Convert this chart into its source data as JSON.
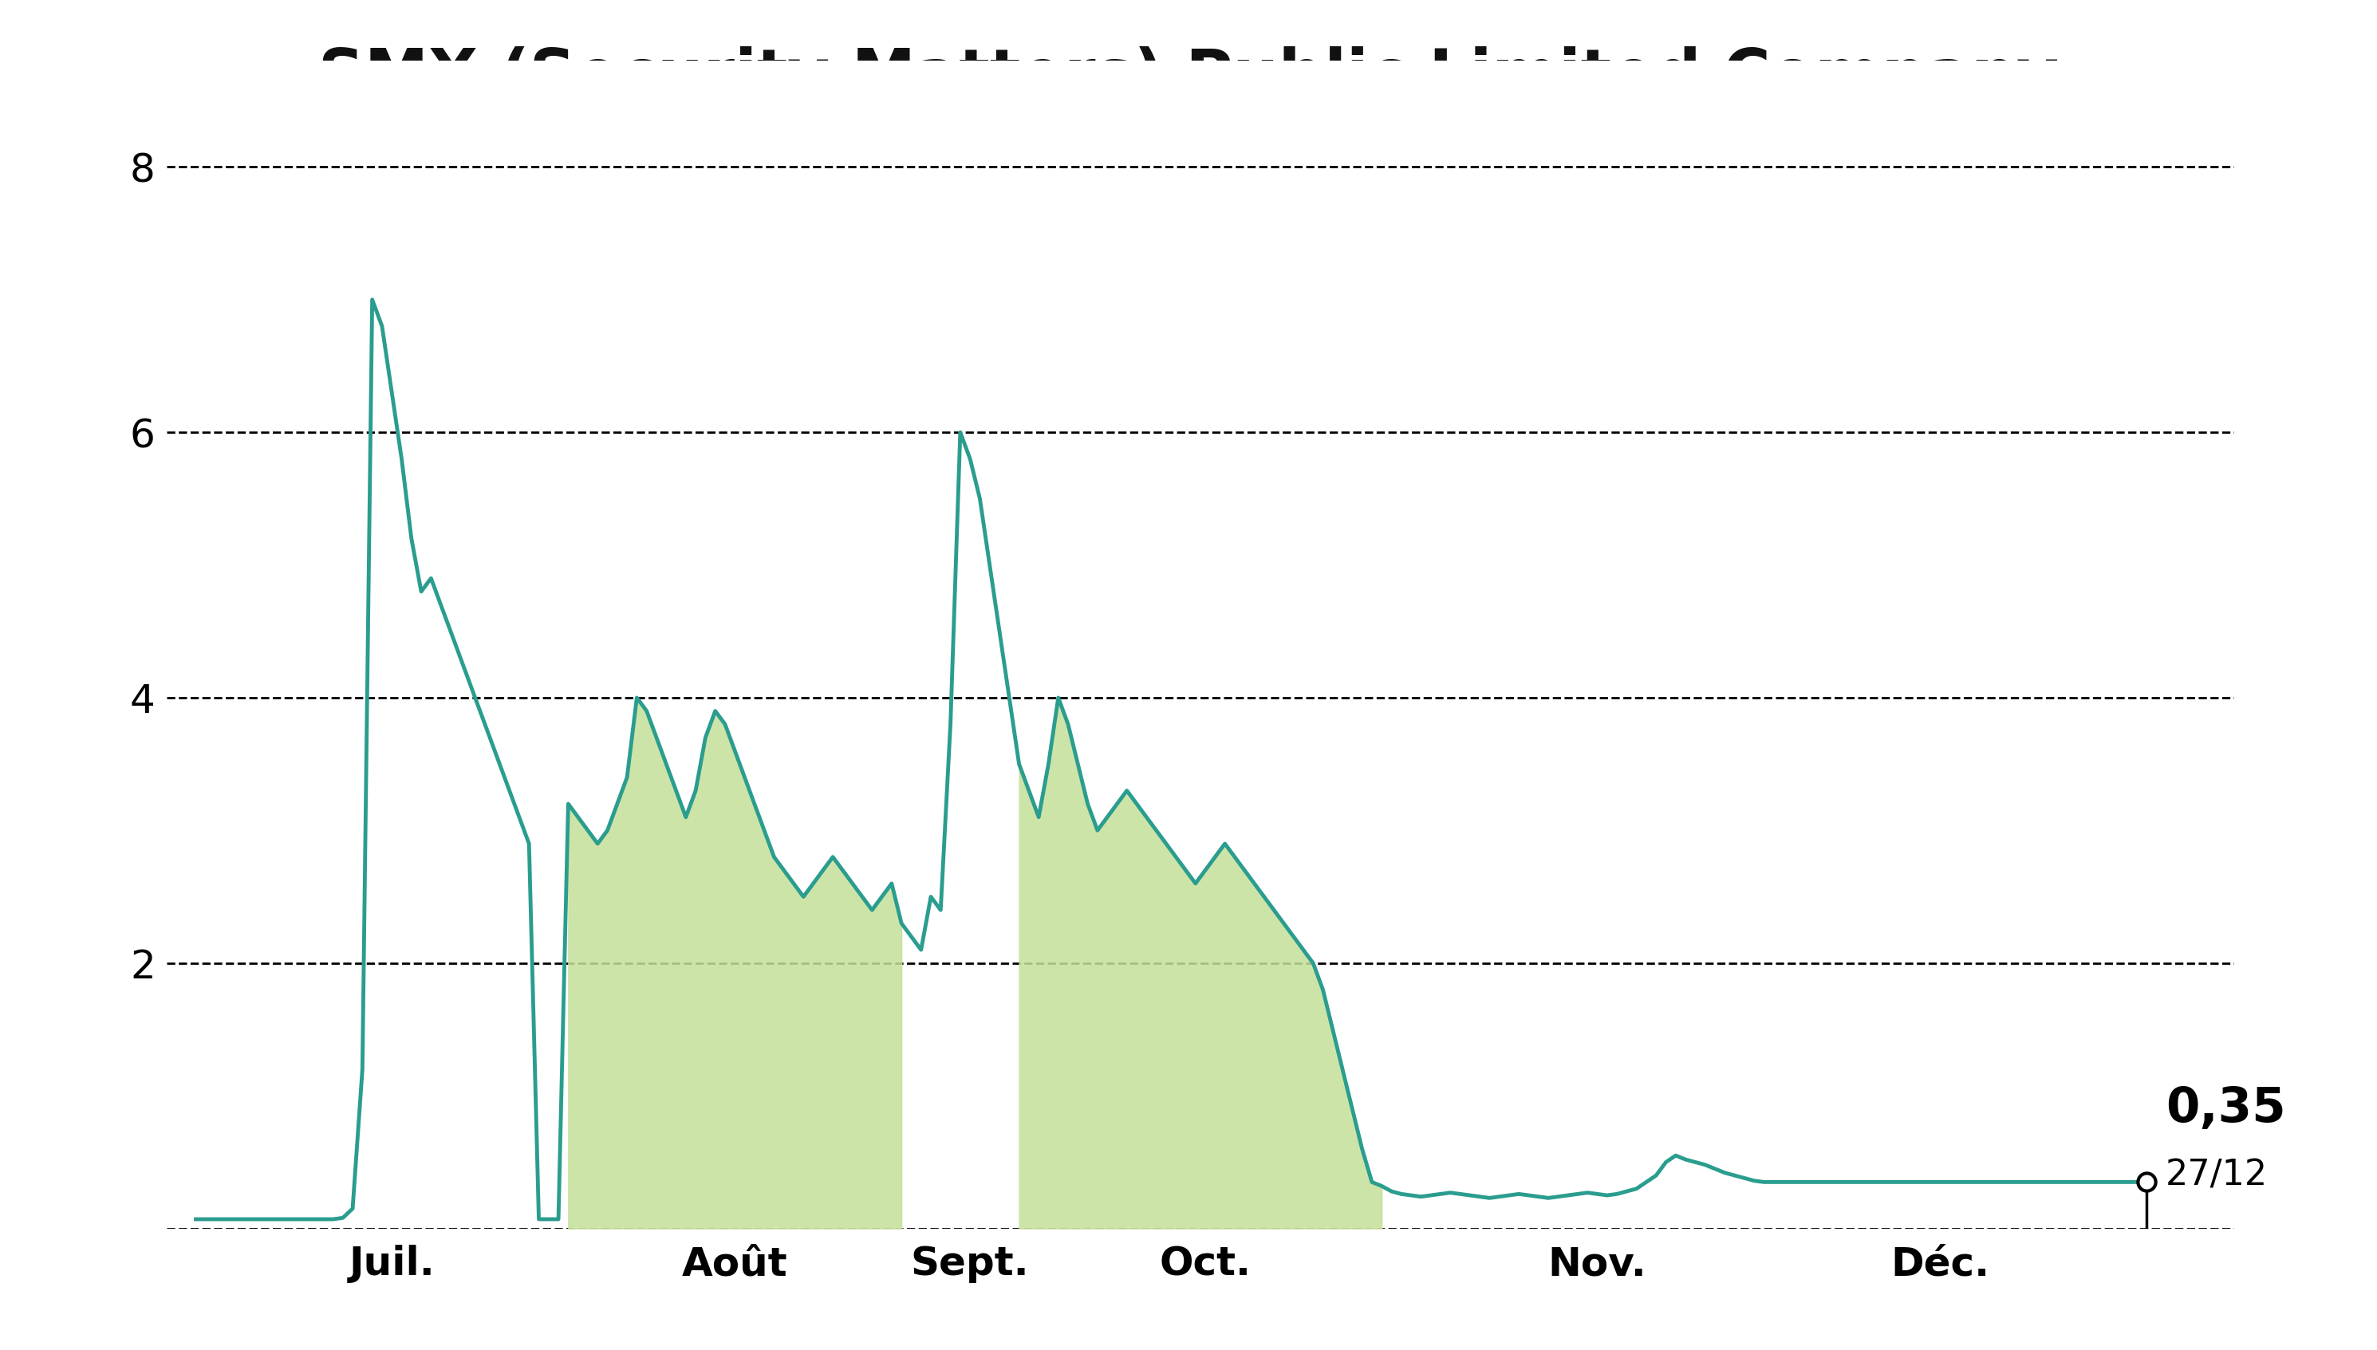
{
  "title": "SMX (Security Matters) Public Limited Company",
  "title_bg_color": "#c5e09a",
  "title_fontsize": 58,
  "bg_color": "#ffffff",
  "line_color": "#2a9d8f",
  "fill_color": "#c5e09a",
  "fill_alpha": 0.85,
  "line_width": 3.5,
  "ylim": [
    0,
    8.8
  ],
  "yticks": [
    0,
    2,
    4,
    6,
    8
  ],
  "xtick_labels": [
    "Juil.",
    "Août",
    "Sept.",
    "Oct.",
    "Nov.",
    "Déc."
  ],
  "last_price": "0,35",
  "last_date": "27/12",
  "grid_color": "#000000",
  "grid_linestyle": "--",
  "grid_linewidth": 2.0,
  "annotation_fontsize_large": 44,
  "annotation_fontsize_small": 32,
  "tick_fontsize": 36,
  "n_points": 200
}
